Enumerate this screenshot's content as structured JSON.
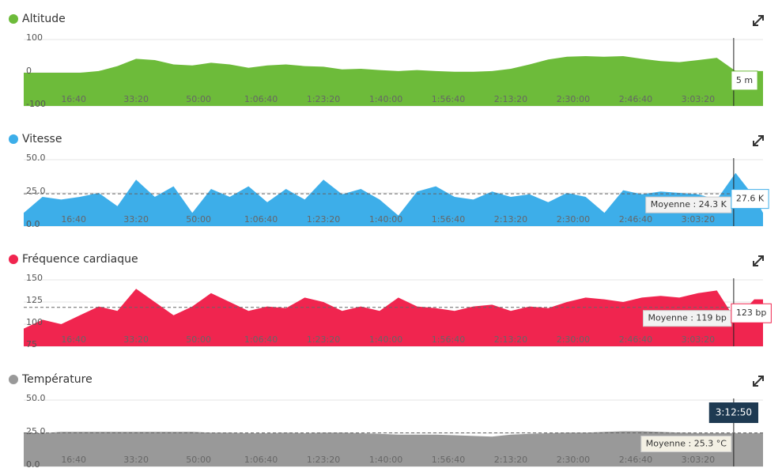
{
  "chart_data": [
    {
      "type": "area",
      "title": "Altitude",
      "color": "#6dbb3a",
      "x": [
        200,
        500,
        800,
        1100,
        1400,
        1700,
        2000,
        2300,
        2600,
        2900,
        3200,
        3500,
        3800,
        4100,
        4400,
        4700,
        5000,
        5300,
        5600,
        5900,
        6200,
        6500,
        6800,
        7100,
        7400,
        7700,
        8000,
        8300,
        8600,
        8900,
        9200,
        9500,
        9800,
        10100,
        10400,
        10700,
        11000,
        11300,
        11600,
        11900,
        12040
      ],
      "values": [
        0,
        0,
        0,
        0,
        5,
        20,
        42,
        38,
        25,
        22,
        30,
        25,
        15,
        22,
        25,
        20,
        18,
        10,
        12,
        8,
        5,
        8,
        5,
        3,
        3,
        5,
        12,
        25,
        40,
        48,
        50,
        48,
        50,
        42,
        35,
        32,
        38,
        45,
        5,
        5,
        5
      ],
      "xlim": [
        200,
        12040
      ],
      "xticks": [
        {
          "value": 1000,
          "label": "16:40"
        },
        {
          "value": 2000,
          "label": "33:20"
        },
        {
          "value": 3000,
          "label": "50:00"
        },
        {
          "value": 4000,
          "label": "1:06:40"
        },
        {
          "value": 5000,
          "label": "1:23:20"
        },
        {
          "value": 6000,
          "label": "1:40:00"
        },
        {
          "value": 7000,
          "label": "1:56:40"
        },
        {
          "value": 8000,
          "label": "2:13:20"
        },
        {
          "value": 9000,
          "label": "2:30:00"
        },
        {
          "value": 10000,
          "label": "2:46:40"
        },
        {
          "value": 11000,
          "label": "3:03:20"
        }
      ],
      "ylim": [
        -100,
        100
      ],
      "yticks": [
        -100,
        0,
        100
      ],
      "grid": true,
      "hover": {
        "value": 5,
        "label": "5 m"
      }
    },
    {
      "type": "area",
      "title": "Vitesse",
      "color": "#3daee9",
      "x": [
        200,
        500,
        800,
        1100,
        1400,
        1700,
        2000,
        2300,
        2600,
        2900,
        3200,
        3500,
        3800,
        4100,
        4400,
        4700,
        5000,
        5300,
        5600,
        5900,
        6200,
        6500,
        6800,
        7100,
        7400,
        7700,
        8000,
        8300,
        8600,
        8900,
        9200,
        9500,
        9800,
        10100,
        10400,
        10700,
        11000,
        11300,
        11600,
        11900,
        12040
      ],
      "values": [
        10,
        22,
        20,
        22,
        25,
        15,
        35,
        22,
        30,
        10,
        28,
        22,
        30,
        18,
        28,
        20,
        35,
        24,
        28,
        20,
        8,
        26,
        30,
        22,
        20,
        26,
        22,
        24,
        18,
        25,
        22,
        10,
        27,
        24,
        26,
        25,
        24,
        20,
        40,
        22,
        10
      ],
      "xlim": [
        200,
        12040
      ],
      "xticks": [
        {
          "value": 1000,
          "label": "16:40"
        },
        {
          "value": 2000,
          "label": "33:20"
        },
        {
          "value": 3000,
          "label": "50:00"
        },
        {
          "value": 4000,
          "label": "1:06:40"
        },
        {
          "value": 5000,
          "label": "1:23:20"
        },
        {
          "value": 6000,
          "label": "1:40:00"
        },
        {
          "value": 7000,
          "label": "1:56:40"
        },
        {
          "value": 8000,
          "label": "2:13:20"
        },
        {
          "value": 9000,
          "label": "2:30:00"
        },
        {
          "value": 10000,
          "label": "2:46:40"
        },
        {
          "value": 11000,
          "label": "3:03:20"
        }
      ],
      "ylim": [
        0,
        50
      ],
      "yticks": [
        {
          "value": 0,
          "label": "0.0"
        },
        {
          "value": 25,
          "label": "25.0"
        },
        {
          "value": 50,
          "label": "50.0"
        }
      ],
      "grid": true,
      "mean": {
        "value": 24.3,
        "label": "Moyenne : 24.3 K"
      },
      "hover": {
        "value": 27.6,
        "label": "27.6 K"
      }
    },
    {
      "type": "area",
      "title": "Fréquence cardiaque",
      "color": "#f0254f",
      "x": [
        200,
        500,
        800,
        1100,
        1400,
        1700,
        2000,
        2300,
        2600,
        2900,
        3200,
        3500,
        3800,
        4100,
        4400,
        4700,
        5000,
        5300,
        5600,
        5900,
        6200,
        6500,
        6800,
        7100,
        7400,
        7700,
        8000,
        8300,
        8600,
        8900,
        9200,
        9500,
        9800,
        10100,
        10400,
        10700,
        11000,
        11300,
        11600,
        11900,
        12040
      ],
      "values": [
        95,
        105,
        100,
        110,
        120,
        115,
        140,
        125,
        110,
        120,
        135,
        125,
        115,
        120,
        118,
        130,
        125,
        115,
        120,
        115,
        130,
        120,
        118,
        115,
        120,
        122,
        115,
        120,
        118,
        125,
        130,
        128,
        125,
        130,
        132,
        130,
        135,
        138,
        105,
        128,
        128
      ],
      "xlim": [
        200,
        12040
      ],
      "xticks": [
        {
          "value": 1000,
          "label": "16:40"
        },
        {
          "value": 2000,
          "label": "33:20"
        },
        {
          "value": 3000,
          "label": "50:00"
        },
        {
          "value": 4000,
          "label": "1:06:40"
        },
        {
          "value": 5000,
          "label": "1:23:20"
        },
        {
          "value": 6000,
          "label": "1:40:00"
        },
        {
          "value": 7000,
          "label": "1:56:40"
        },
        {
          "value": 8000,
          "label": "2:13:20"
        },
        {
          "value": 9000,
          "label": "2:30:00"
        },
        {
          "value": 10000,
          "label": "2:46:40"
        },
        {
          "value": 11000,
          "label": "3:03:20"
        }
      ],
      "ylim": [
        75,
        150
      ],
      "yticks": [
        75,
        100,
        125,
        150
      ],
      "grid": true,
      "mean": {
        "value": 119,
        "label": "Moyenne : 119 bp"
      },
      "hover": {
        "value": 123,
        "label": "123 bp"
      }
    },
    {
      "type": "area",
      "title": "Température",
      "color": "#999999",
      "x": [
        200,
        500,
        800,
        1100,
        1400,
        1700,
        2000,
        2300,
        2600,
        2900,
        3200,
        3500,
        3800,
        4100,
        4400,
        4700,
        5000,
        5300,
        5600,
        5900,
        6200,
        6500,
        6800,
        7100,
        7400,
        7700,
        8000,
        8300,
        8600,
        8900,
        9200,
        9500,
        9800,
        10100,
        10400,
        10700,
        11000,
        11300,
        11600,
        11900,
        12040
      ],
      "values": [
        25,
        25,
        26,
        26,
        26,
        26,
        26,
        26,
        26,
        26,
        25.5,
        25.5,
        25,
        25,
        25.5,
        25,
        25.5,
        25.5,
        25,
        24.5,
        24,
        24,
        24,
        23.5,
        23,
        22.5,
        24,
        24.5,
        25,
        25.5,
        25.5,
        26,
        26.5,
        26.5,
        26,
        25.5,
        25,
        25,
        25,
        25,
        25
      ],
      "xlim": [
        200,
        12040
      ],
      "xticks": [
        {
          "value": 1000,
          "label": "16:40"
        },
        {
          "value": 2000,
          "label": "33:20"
        },
        {
          "value": 3000,
          "label": "50:00"
        },
        {
          "value": 4000,
          "label": "1:06:40"
        },
        {
          "value": 5000,
          "label": "1:23:20"
        },
        {
          "value": 6000,
          "label": "1:40:00"
        },
        {
          "value": 7000,
          "label": "1:56:40"
        },
        {
          "value": 8000,
          "label": "2:13:20"
        },
        {
          "value": 9000,
          "label": "2:30:00"
        },
        {
          "value": 10000,
          "label": "2:46:40"
        },
        {
          "value": 11000,
          "label": "3:03:20"
        }
      ],
      "ylim": [
        0,
        50
      ],
      "yticks": [
        {
          "value": 0,
          "label": "0.0"
        },
        {
          "value": 25,
          "label": "25.0"
        },
        {
          "value": 50,
          "label": "50.0"
        }
      ],
      "grid": true,
      "mean": {
        "value": 25.3,
        "label": "Moyenne : 25.3 °C"
      },
      "cursor": {
        "value": 11570,
        "label": "3:12:50"
      }
    }
  ]
}
